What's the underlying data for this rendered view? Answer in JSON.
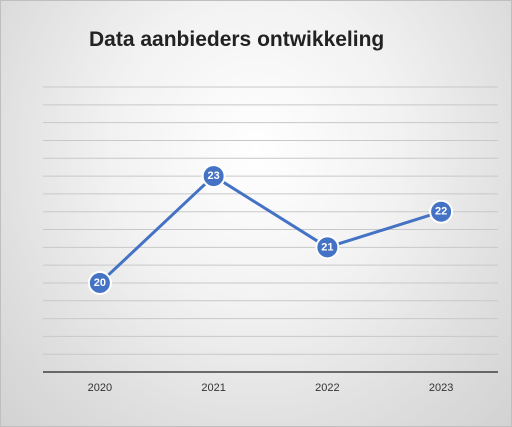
{
  "chart_data": {
    "type": "line",
    "title": "Data aanbieders ontwikkeling",
    "categories": [
      "2020",
      "2021",
      "2022",
      "2023"
    ],
    "values": [
      20,
      23,
      21,
      22
    ],
    "ylim": [
      17.5,
      25.5
    ],
    "xlabel": "",
    "ylabel": "",
    "grid": true,
    "y_axis_labels_shown": false,
    "data_labels": true,
    "legend": "none",
    "colors": {
      "series": "#4472c4",
      "gridline": "#c8c8c8",
      "axis": "#404040"
    }
  }
}
